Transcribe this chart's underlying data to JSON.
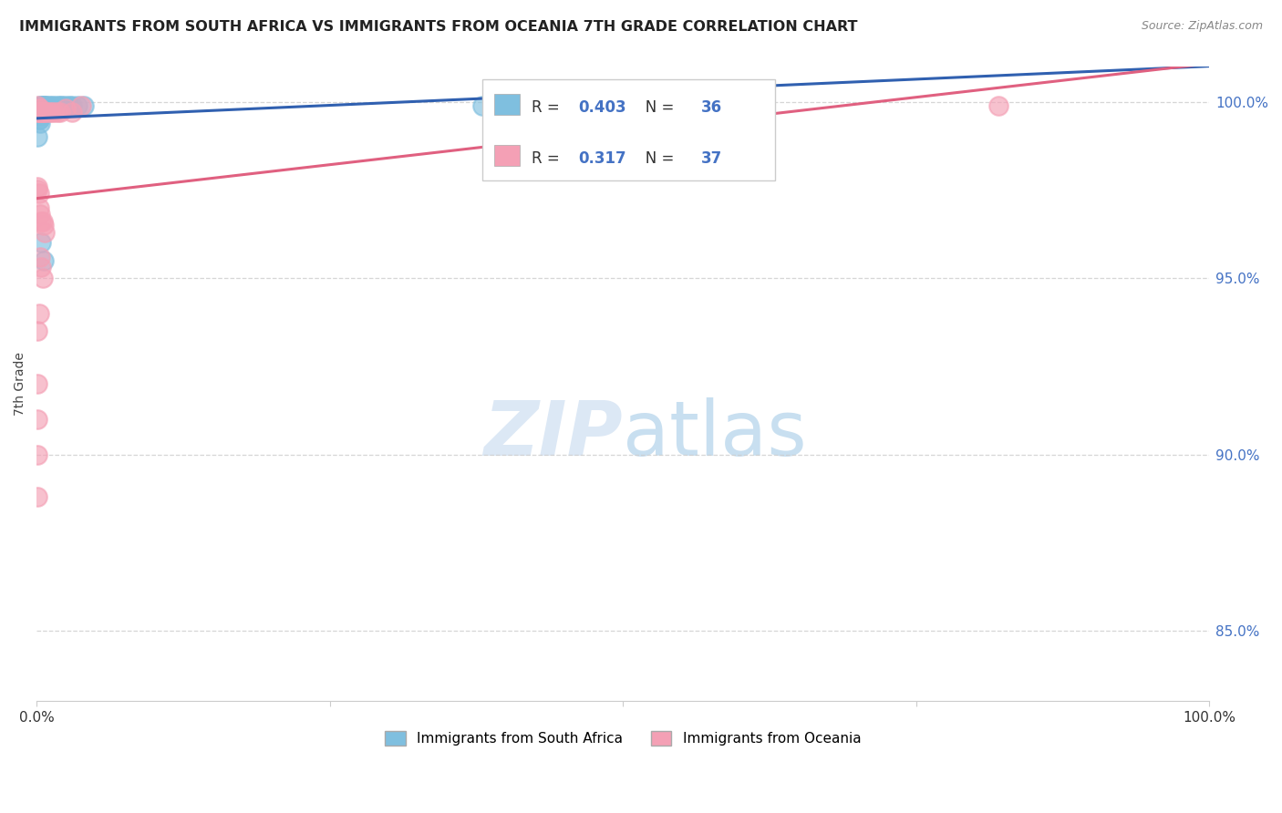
{
  "title": "IMMIGRANTS FROM SOUTH AFRICA VS IMMIGRANTS FROM OCEANIA 7TH GRADE CORRELATION CHART",
  "source": "Source: ZipAtlas.com",
  "ylabel": "7th Grade",
  "legend_label1": "Immigrants from South Africa",
  "legend_label2": "Immigrants from Oceania",
  "r1": 0.403,
  "n1": 36,
  "r2": 0.317,
  "n2": 37,
  "color_blue": "#7fbfdf",
  "color_pink": "#f4a0b5",
  "color_blue_line": "#3060b0",
  "color_pink_line": "#e06080",
  "xlim": [
    0.0,
    1.0
  ],
  "ylim": [
    0.83,
    1.01
  ],
  "yticks": [
    0.85,
    0.9,
    0.95,
    1.0
  ],
  "ytick_labels": [
    "85.0%",
    "90.0%",
    "95.0%",
    "100.0%"
  ],
  "blue_scatter_x": [
    0.001,
    0.002,
    0.002,
    0.003,
    0.003,
    0.003,
    0.004,
    0.004,
    0.004,
    0.005,
    0.005,
    0.005,
    0.006,
    0.006,
    0.007,
    0.007,
    0.008,
    0.009,
    0.01,
    0.01,
    0.012,
    0.012,
    0.015,
    0.018,
    0.02,
    0.022,
    0.025,
    0.028,
    0.03,
    0.035,
    0.04,
    0.002,
    0.003,
    0.004,
    0.006,
    0.38
  ],
  "blue_scatter_y": [
    0.99,
    0.995,
    0.998,
    0.997,
    0.999,
    0.996,
    0.998,
    0.997,
    0.999,
    0.998,
    0.999,
    0.997,
    0.998,
    0.999,
    0.998,
    0.999,
    0.999,
    0.998,
    0.998,
    0.999,
    0.999,
    0.998,
    0.999,
    0.999,
    0.999,
    0.999,
    0.999,
    0.999,
    0.999,
    0.999,
    0.999,
    0.995,
    0.994,
    0.96,
    0.955,
    0.999
  ],
  "pink_scatter_x": [
    0.001,
    0.001,
    0.001,
    0.001,
    0.001,
    0.002,
    0.002,
    0.002,
    0.003,
    0.003,
    0.003,
    0.004,
    0.004,
    0.005,
    0.005,
    0.006,
    0.006,
    0.007,
    0.008,
    0.01,
    0.012,
    0.015,
    0.018,
    0.02,
    0.025,
    0.03,
    0.038,
    0.003,
    0.004,
    0.005,
    0.002,
    0.001,
    0.001,
    0.001,
    0.001,
    0.001,
    0.82
  ],
  "pink_scatter_y": [
    0.999,
    0.998,
    0.997,
    0.976,
    0.975,
    0.997,
    0.974,
    0.97,
    0.998,
    0.997,
    0.968,
    0.997,
    0.966,
    0.997,
    0.966,
    0.997,
    0.965,
    0.963,
    0.997,
    0.997,
    0.997,
    0.997,
    0.997,
    0.997,
    0.998,
    0.997,
    0.999,
    0.956,
    0.953,
    0.95,
    0.94,
    0.935,
    0.92,
    0.91,
    0.9,
    0.888,
    0.999
  ]
}
